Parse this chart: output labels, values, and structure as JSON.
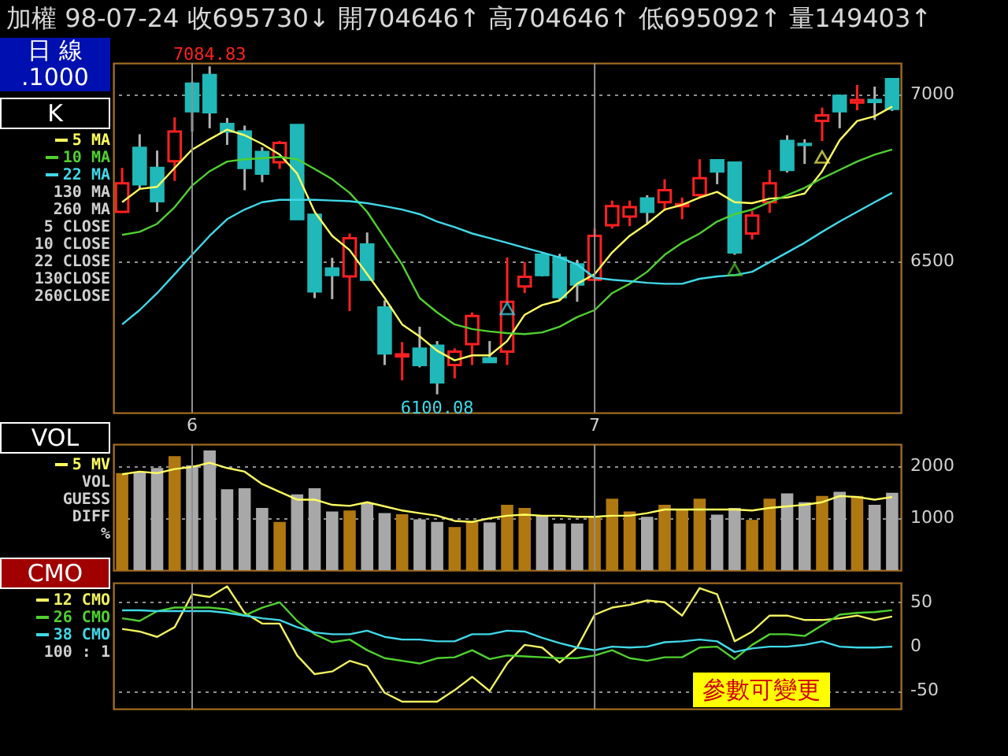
{
  "chart_data": [
    {
      "type": "candlestick",
      "title": "加權 98-07-24 收695730↓ 開704646↑ 高704646↑ 低695092↑ 量149403↑",
      "subtitle": "日 線\n.1000",
      "ylabel": "K",
      "categories": [
        null,
        null,
        null,
        null,
        "6",
        null,
        null,
        null,
        null,
        null,
        null,
        null,
        null,
        null,
        null,
        null,
        null,
        null,
        null,
        null,
        null,
        null,
        null,
        null,
        null,
        null,
        null,
        "7",
        null,
        null,
        null,
        null,
        null,
        null,
        null,
        null,
        null,
        null,
        null,
        null,
        null,
        null,
        null,
        null,
        null
      ],
      "ohlc": [
        [
          6648,
          6780,
          6645,
          6734
        ],
        [
          6840,
          6881,
          6717,
          6731
        ],
        [
          6780,
          6832,
          6648,
          6680
        ],
        [
          6800,
          6932,
          6741,
          6889
        ],
        [
          7033,
          7039,
          6889,
          6950
        ],
        [
          7059,
          7084.83,
          6899,
          6947
        ],
        [
          6912,
          6930,
          6849,
          6889
        ],
        [
          6889,
          6907,
          6713,
          6780
        ],
        [
          6828,
          6842,
          6737,
          6763
        ],
        [
          6797,
          6861,
          6777,
          6855
        ],
        [
          6909,
          6909,
          6626,
          6626
        ],
        [
          6639,
          6639,
          6389,
          6409
        ],
        [
          6478,
          6510,
          6386,
          6458
        ],
        [
          6454,
          6583,
          6350,
          6569
        ],
        [
          6550,
          6586,
          6444,
          6444
        ],
        [
          6361,
          6382,
          6188,
          6223
        ],
        [
          6214,
          6257,
          6142,
          6220
        ],
        [
          6237,
          6303,
          6181,
          6188
        ],
        [
          6246,
          6260,
          6100.08,
          6136
        ],
        [
          6188,
          6238,
          6148,
          6228
        ],
        [
          6251,
          6346,
          6188,
          6335
        ],
        [
          6208,
          6260,
          6197,
          6197
        ],
        [
          6228,
          6511,
          6188,
          6378
        ],
        [
          6424,
          6497,
          6404,
          6453
        ],
        [
          6519,
          6526,
          6454,
          6458
        ],
        [
          6510,
          6522,
          6382,
          6392
        ],
        [
          6490,
          6504,
          6378,
          6430
        ],
        [
          6444,
          6598,
          6440,
          6576
        ],
        [
          6608,
          6682,
          6598,
          6665
        ],
        [
          6634,
          6682,
          6605,
          6662
        ],
        [
          6688,
          6698,
          6612,
          6648
        ],
        [
          6677,
          6746,
          6651,
          6713
        ],
        [
          6665,
          6691,
          6626,
          6671
        ],
        [
          6698,
          6806,
          6691,
          6749
        ],
        [
          6803,
          6806,
          6731,
          6769
        ],
        [
          6796,
          6799,
          6519,
          6526
        ],
        [
          6583,
          6651,
          6565,
          6637
        ],
        [
          6677,
          6774,
          6645,
          6734
        ],
        [
          6861,
          6878,
          6766,
          6774
        ],
        [
          6852,
          6866,
          6792,
          6849
        ],
        [
          6921,
          6961,
          6861,
          6938
        ],
        [
          6996,
          7000,
          6899,
          6950
        ],
        [
          6976,
          7029,
          6953,
          6984
        ],
        [
          6984,
          7024,
          6924,
          6978
        ],
        [
          7046.46,
          7046.46,
          6950.92,
          6957.3
        ]
      ],
      "series": [
        {
          "type": "line",
          "name": "5 MA",
          "color": "#ffff60",
          "values": [
            6677,
            6717,
            6723,
            6780,
            6835,
            6866,
            6895,
            6878,
            6852,
            6820,
            6763,
            6648,
            6576,
            6533,
            6461,
            6389,
            6310,
            6274,
            6231,
            6202,
            6217,
            6217,
            6260,
            6339,
            6368,
            6382,
            6432,
            6461,
            6526,
            6576,
            6612,
            6655,
            6669,
            6691,
            6708,
            6677,
            6674,
            6688,
            6691,
            6703,
            6770,
            6863,
            6921,
            6935,
            6964
          ]
        },
        {
          "type": "line",
          "name": "10 MA",
          "color": "#50d030",
          "values": [
            6579,
            6588,
            6612,
            6662,
            6727,
            6770,
            6799,
            6806,
            6809,
            6813,
            6806,
            6777,
            6746,
            6705,
            6648,
            6569,
            6490,
            6389,
            6346,
            6310,
            6296,
            6289,
            6284,
            6281,
            6286,
            6303,
            6332,
            6353,
            6404,
            6432,
            6468,
            6519,
            6555,
            6583,
            6619,
            6641,
            6655,
            6677,
            6698,
            6720,
            6749,
            6774,
            6799,
            6820,
            6835
          ]
        },
        {
          "type": "line",
          "name": "22 MA",
          "color": "#40d8e8",
          "values": [
            6310,
            6353,
            6404,
            6461,
            6519,
            6576,
            6626,
            6655,
            6677,
            6684,
            6684,
            6684,
            6682,
            6680,
            6674,
            6665,
            6655,
            6641,
            6619,
            6602,
            6583,
            6569,
            6555,
            6540,
            6526,
            6511,
            6490,
            6450,
            6444,
            6440,
            6435,
            6432,
            6432,
            6447,
            6454,
            6458,
            6468,
            6497,
            6526,
            6555,
            6588,
            6619,
            6648,
            6677,
            6705
          ]
        },
        {
          "type": "scatter",
          "marker": "triangle",
          "values": [
            null,
            null,
            null,
            null,
            null,
            null,
            null,
            null,
            null,
            null,
            null,
            null,
            null,
            null,
            null,
            null,
            null,
            null,
            null,
            null,
            null,
            null,
            6358,
            null,
            null,
            null,
            null,
            null,
            null,
            null,
            null,
            null,
            null,
            null,
            null,
            6475,
            null,
            null,
            null,
            null,
            6813,
            null,
            null,
            null,
            null
          ],
          "colors": [
            null,
            null,
            null,
            null,
            null,
            null,
            null,
            null,
            null,
            null,
            null,
            null,
            null,
            null,
            null,
            null,
            null,
            null,
            null,
            null,
            null,
            null,
            "#40d8e8",
            null,
            null,
            null,
            null,
            null,
            null,
            null,
            null,
            null,
            null,
            null,
            null,
            "#50d030",
            null,
            null,
            null,
            null,
            "#ffff60",
            null,
            null,
            null,
            null
          ]
        }
      ],
      "annotations": [
        {
          "text": "7084.83",
          "y": 7084.83
        },
        {
          "text": "6100.08",
          "y": 6100.08
        },
        "130 MA",
        "260 MA",
        "5 CLOSE",
        "10 CLOSE",
        "22 CLOSE",
        "130CLOSE",
        "260CLOSE"
      ],
      "ref_lines": [
        {
          "axis": "x",
          "value": "6",
          "color": "#909090"
        },
        {
          "axis": "x",
          "value": "7",
          "color": "#909090"
        }
      ],
      "ylim": [
        6045,
        7095
      ],
      "yticks": [
        6500,
        7000
      ],
      "grid": "y",
      "legend": "left"
    },
    {
      "type": "bar",
      "ylabel": "VOL",
      "tick_labels": "y",
      "categories": [
        null,
        null,
        null,
        null,
        "6",
        null,
        null,
        null,
        null,
        null,
        null,
        null,
        null,
        null,
        null,
        null,
        null,
        null,
        null,
        null,
        null,
        null,
        null,
        null,
        null,
        null,
        null,
        "7",
        null,
        null,
        null,
        null,
        null,
        null,
        null,
        null,
        null,
        null,
        null,
        null,
        null,
        null,
        null,
        null,
        null
      ],
      "series": [
        {
          "type": "bar",
          "values": [
            1870,
            1900,
            1970,
            2200,
            2020,
            2310,
            1560,
            1580,
            1200,
            930,
            1460,
            1580,
            1130,
            1150,
            1290,
            1100,
            1080,
            980,
            930,
            830,
            930,
            920,
            1260,
            1200,
            1050,
            900,
            900,
            1030,
            1380,
            1130,
            1030,
            1260,
            1170,
            1380,
            1070,
            1200,
            970,
            1380,
            1480,
            1310,
            1430,
            1510,
            1430,
            1260,
            1494.03
          ],
          "colors": [
            "#b07810",
            "#a8a8a8",
            "#a8a8a8",
            "#b07810",
            "#a8a8a8",
            "#a8a8a8",
            "#a8a8a8",
            "#a8a8a8",
            "#a8a8a8",
            "#b07810",
            "#a8a8a8",
            "#a8a8a8",
            "#a8a8a8",
            "#b07810",
            "#a8a8a8",
            "#a8a8a8",
            "#b07810",
            "#a8a8a8",
            "#a8a8a8",
            "#b07810",
            "#b07810",
            "#a8a8a8",
            "#b07810",
            "#b07810",
            "#a8a8a8",
            "#a8a8a8",
            "#a8a8a8",
            "#b07810",
            "#b07810",
            "#b07810",
            "#a8a8a8",
            "#b07810",
            "#b07810",
            "#b07810",
            "#a8a8a8",
            "#a8a8a8",
            "#b07810",
            "#b07810",
            "#a8a8a8",
            "#a8a8a8",
            "#b07810",
            "#a8a8a8",
            "#b07810",
            "#a8a8a8",
            "#a8a8a8"
          ]
        },
        {
          "type": "line",
          "name": "5 MV",
          "color": "#ffff60",
          "values": [
            1850,
            1900,
            1870,
            1950,
            1990,
            2070,
            1970,
            1900,
            1660,
            1510,
            1360,
            1360,
            1260,
            1240,
            1310,
            1230,
            1150,
            1100,
            1050,
            950,
            930,
            1000,
            1050,
            1070,
            1050,
            1050,
            1030,
            1030,
            1050,
            1050,
            1100,
            1170,
            1170,
            1170,
            1170,
            1170,
            1150,
            1200,
            1230,
            1260,
            1310,
            1430,
            1410,
            1360,
            1410
          ]
        }
      ],
      "annotations": [
        "VOL",
        "GUESS",
        "DIFF",
        "%"
      ],
      "ref_lines": [
        {
          "axis": "x",
          "value": "6",
          "color": "#909090"
        },
        {
          "axis": "x",
          "value": "7",
          "color": "#909090"
        }
      ],
      "ylim": [
        0,
        2430
      ],
      "yticks": [
        1000,
        2000
      ],
      "grid": "y",
      "legend": "left"
    },
    {
      "type": "line",
      "ylabel": "CMO",
      "tick_labels": "y",
      "categories": [
        null,
        null,
        null,
        null,
        "6",
        null,
        null,
        null,
        null,
        null,
        null,
        null,
        null,
        null,
        null,
        null,
        null,
        null,
        null,
        null,
        null,
        null,
        null,
        null,
        null,
        null,
        null,
        "7",
        null,
        null,
        null,
        null,
        null,
        null,
        null,
        null,
        null,
        null,
        null,
        null,
        null,
        null,
        null,
        null,
        null
      ],
      "series": [
        {
          "name": "12 CMO",
          "color": "#f0f060",
          "values": [
            20,
            17,
            11,
            22,
            59,
            56,
            68,
            38,
            26,
            26,
            -10,
            -31,
            -28,
            -16,
            -22,
            -52,
            -62,
            -62,
            -62,
            -49,
            -34,
            -50,
            -19,
            2,
            -1,
            -18,
            -1,
            36,
            44,
            47,
            52,
            50,
            35,
            66,
            59,
            6,
            17,
            35,
            35,
            30,
            30,
            32,
            35,
            30,
            34
          ]
        },
        {
          "name": "26 CMO",
          "color": "#50d030",
          "values": [
            32,
            29,
            40,
            44,
            44,
            44,
            42,
            35,
            44,
            50,
            29,
            14,
            5,
            8,
            -4,
            -13,
            -16,
            -19,
            -13,
            -12,
            -4,
            -14,
            -10,
            -11,
            -12,
            -13,
            -13,
            -10,
            -4,
            -13,
            -16,
            -12,
            -12,
            -1,
            0,
            -14,
            2,
            14,
            14,
            12,
            24,
            36,
            38,
            39,
            41
          ]
        },
        {
          "name": "38 CMO",
          "color": "#40d8e8",
          "values": [
            41,
            41,
            40,
            40,
            40,
            40,
            38,
            35,
            32,
            30,
            22,
            16,
            14,
            14,
            18,
            11,
            8,
            8,
            6,
            6,
            14,
            14,
            18,
            17,
            10,
            4,
            -1,
            -4,
            0,
            -1,
            0,
            5,
            6,
            8,
            6,
            -6,
            -2,
            0,
            0,
            2,
            6,
            0,
            -1,
            -1,
            0
          ]
        }
      ],
      "annotations": [
        "100 : 1"
      ],
      "ref_lines": [
        {
          "axis": "x",
          "value": "6",
          "color": "#909090"
        },
        {
          "axis": "x",
          "value": "7",
          "color": "#909090"
        }
      ],
      "ylim": [
        -70,
        72
      ],
      "yticks": [
        -50,
        0,
        50
      ],
      "grid": "y",
      "legend": "left"
    },
    {
      "type": "other",
      "annotations": [
        "參數可變更"
      ]
    }
  ]
}
